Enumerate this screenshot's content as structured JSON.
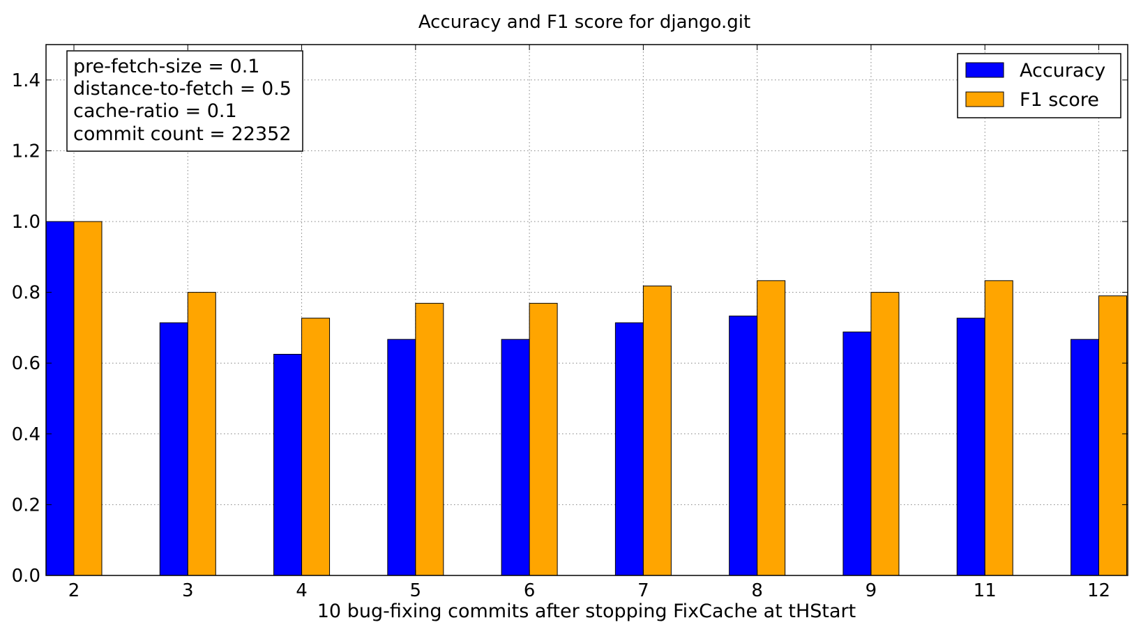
{
  "chart_data": {
    "type": "bar",
    "title": "Accuracy and F1 score for django.git",
    "xlabel": "10 bug-fixing commits after stopping FixCache at tHStart",
    "ylabel": "",
    "categories": [
      "2",
      "3",
      "4",
      "5",
      "6",
      "7",
      "8",
      "9",
      "11",
      "12"
    ],
    "ylim": [
      0,
      1.5
    ],
    "yticks": [
      "0.0",
      "0.2",
      "0.4",
      "0.6",
      "0.8",
      "1.0",
      "1.2",
      "1.4"
    ],
    "grid": true,
    "legend_position": "top-right",
    "series": [
      {
        "name": "Accuracy",
        "color": "#0000ff",
        "values": [
          1.0,
          0.714,
          0.625,
          0.667,
          0.667,
          0.714,
          0.733,
          0.688,
          0.727,
          0.667
        ]
      },
      {
        "name": "F1 score",
        "color": "#ffa500",
        "values": [
          1.0,
          0.8,
          0.727,
          0.769,
          0.769,
          0.818,
          0.833,
          0.8,
          0.833,
          0.79
        ]
      }
    ],
    "annotation_box": {
      "lines": [
        "pre-fetch-size = 0.1",
        "distance-to-fetch = 0.5",
        "cache-ratio = 0.1",
        "commit count = 22352"
      ]
    }
  }
}
